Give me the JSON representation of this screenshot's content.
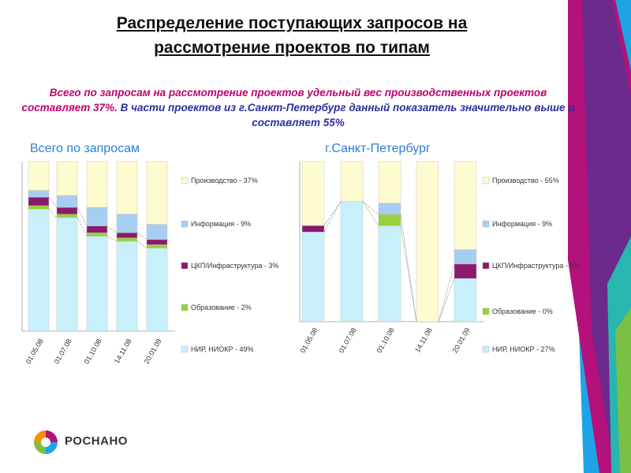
{
  "page": {
    "title_line1": "Распределение поступающих запросов на",
    "title_line2": "рассмотрение проектов по типам",
    "subtitle_part1": "Всего по запросам на рассмотрение проектов удельный вес производственных проектов составляет 37%.",
    "subtitle_part2": " В части проектов из г.Санкт-Петербург данный показатель значительно выше и составляет 55%",
    "logo_text": "РОСНАНО"
  },
  "colors": {
    "production": "#fdfbd0",
    "information": "#a8cdf2",
    "infrastructure": "#8a1a6e",
    "education": "#9ccf3c",
    "research": "#c7f0fb",
    "accent_magenta": "#c0006e",
    "accent_blue": "#2b7fd6"
  },
  "chart_data": [
    {
      "type": "bar",
      "stacked": true,
      "percent": true,
      "title": "Всего по запросам",
      "categories": [
        "01.05.08",
        "01.07.08",
        "01.10.08",
        "14.11.08",
        "20.01.09"
      ],
      "series": [
        {
          "name": "НИР, НИОКР - 49%",
          "values": [
            72,
            67,
            56,
            53,
            49
          ]
        },
        {
          "name": "Образование - 2%",
          "values": [
            2,
            2,
            2,
            2,
            2
          ]
        },
        {
          "name": "ЦКП/Инфраструктура - 3%",
          "values": [
            5,
            4,
            4,
            3,
            3
          ]
        },
        {
          "name": "Информация - 9%",
          "values": [
            4,
            7,
            11,
            11,
            9
          ]
        },
        {
          "name": "Производство - 37%",
          "values": [
            17,
            20,
            27,
            31,
            37
          ]
        }
      ],
      "legend": "right"
    },
    {
      "type": "bar",
      "stacked": true,
      "percent": true,
      "title": "г.Санкт-Петербург",
      "categories": [
        "01.05.08",
        "01.07.08",
        "01.10.08",
        "14.11.08",
        "20.01.09"
      ],
      "series": [
        {
          "name": "НИР, НИОКР - 27%",
          "values": [
            56,
            75,
            60,
            0,
            27
          ]
        },
        {
          "name": "Образование - 0%",
          "values": [
            0,
            0,
            7,
            0,
            0
          ]
        },
        {
          "name": "ЦКП/Инфраструктура - 9%",
          "values": [
            4,
            0,
            0,
            0,
            9
          ]
        },
        {
          "name": "Информация - 9%",
          "values": [
            0,
            0,
            7,
            0,
            9
          ]
        },
        {
          "name": "Производство - 55%",
          "values": [
            40,
            25,
            26,
            100,
            55
          ]
        }
      ],
      "legend": "right"
    }
  ]
}
